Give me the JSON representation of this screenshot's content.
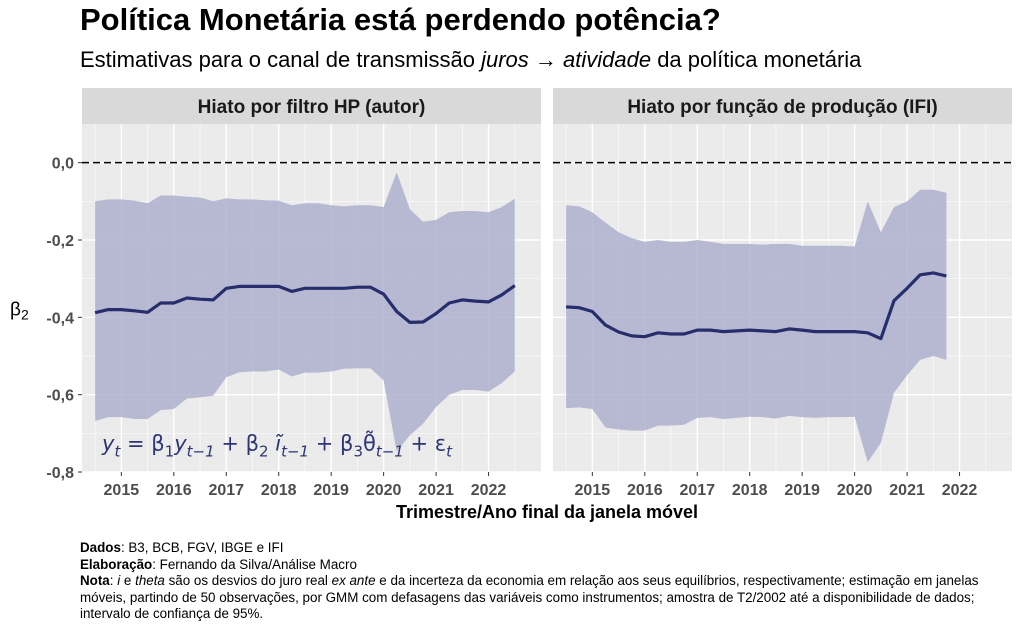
{
  "title": "Política Monetária está perdendo potência?",
  "subtitle": {
    "prefix": "Estimativas para o canal de transmissão ",
    "italic1": "juros",
    "arrow": " → ",
    "italic2": "atividade",
    "suffix": " da política monetária"
  },
  "colors": {
    "panel_bg": "#ebebeb",
    "strip_bg": "#d9d9d9",
    "grid": "#ffffff",
    "line": "#262e6c",
    "ribbon": "#aaaccd"
  },
  "chart_data": {
    "type": "line",
    "xlabel": "Trimestre/Ano final da janela móvel",
    "ylabel": "β2",
    "ylim": [
      -0.8,
      0.1
    ],
    "yticks": [
      0.0,
      -0.2,
      -0.4,
      -0.6,
      -0.8
    ],
    "ytick_labels": [
      "0,0",
      "-0,2",
      "-0,4",
      "-0,6",
      "-0,8"
    ],
    "xlim": [
      2014.25,
      2023.0
    ],
    "xticks": [
      2015,
      2016,
      2017,
      2018,
      2019,
      2020,
      2021,
      2022
    ],
    "xtick_labels": [
      "2015",
      "2016",
      "2017",
      "2018",
      "2019",
      "2020",
      "2021",
      "2022"
    ],
    "reference_line": 0.0,
    "equation": "y_t = β₁y_{t−1} + β₂ ĩ_{t−1} + β₃θ̃_{t−1} + ε_t",
    "panels": [
      {
        "strip": "Hiato por filtro HP (autor)",
        "x": [
          2014.5,
          2014.75,
          2015.0,
          2015.25,
          2015.5,
          2015.75,
          2016.0,
          2016.25,
          2016.5,
          2016.75,
          2017.0,
          2017.25,
          2017.5,
          2017.75,
          2018.0,
          2018.25,
          2018.5,
          2018.75,
          2019.0,
          2019.25,
          2019.5,
          2019.75,
          2020.0,
          2020.25,
          2020.5,
          2020.75,
          2021.0,
          2021.25,
          2021.5,
          2021.75,
          2022.0,
          2022.25,
          2022.5
        ],
        "estimate": [
          -0.388,
          -0.38,
          -0.38,
          -0.383,
          -0.387,
          -0.363,
          -0.363,
          -0.35,
          -0.353,
          -0.355,
          -0.325,
          -0.32,
          -0.32,
          -0.32,
          -0.32,
          -0.333,
          -0.325,
          -0.325,
          -0.325,
          -0.325,
          -0.322,
          -0.322,
          -0.34,
          -0.385,
          -0.413,
          -0.412,
          -0.39,
          -0.363,
          -0.355,
          -0.358,
          -0.36,
          -0.342,
          -0.318
        ],
        "upper": [
          -0.1,
          -0.095,
          -0.095,
          -0.098,
          -0.105,
          -0.085,
          -0.085,
          -0.088,
          -0.09,
          -0.1,
          -0.092,
          -0.095,
          -0.095,
          -0.097,
          -0.098,
          -0.11,
          -0.105,
          -0.105,
          -0.11,
          -0.113,
          -0.11,
          -0.11,
          -0.115,
          -0.025,
          -0.12,
          -0.153,
          -0.148,
          -0.128,
          -0.125,
          -0.125,
          -0.128,
          -0.115,
          -0.093
        ],
        "lower": [
          -0.668,
          -0.658,
          -0.658,
          -0.663,
          -0.663,
          -0.64,
          -0.637,
          -0.61,
          -0.607,
          -0.603,
          -0.555,
          -0.542,
          -0.54,
          -0.54,
          -0.535,
          -0.553,
          -0.543,
          -0.543,
          -0.54,
          -0.533,
          -0.532,
          -0.532,
          -0.563,
          -0.747,
          -0.705,
          -0.675,
          -0.632,
          -0.6,
          -0.588,
          -0.588,
          -0.592,
          -0.57,
          -0.54
        ]
      },
      {
        "strip": "Hiato por função de produção (IFI)",
        "x": [
          2014.5,
          2014.75,
          2015.0,
          2015.25,
          2015.5,
          2015.75,
          2016.0,
          2016.25,
          2016.5,
          2016.75,
          2017.0,
          2017.25,
          2017.5,
          2017.75,
          2018.0,
          2018.25,
          2018.5,
          2018.75,
          2019.0,
          2019.25,
          2019.5,
          2019.75,
          2020.0,
          2020.25,
          2020.5,
          2020.75,
          2021.0,
          2021.25,
          2021.5,
          2021.75
        ],
        "estimate": [
          -0.373,
          -0.375,
          -0.385,
          -0.42,
          -0.438,
          -0.448,
          -0.45,
          -0.44,
          -0.443,
          -0.443,
          -0.433,
          -0.433,
          -0.437,
          -0.435,
          -0.433,
          -0.435,
          -0.437,
          -0.43,
          -0.433,
          -0.437,
          -0.437,
          -0.437,
          -0.437,
          -0.44,
          -0.455,
          -0.357,
          -0.325,
          -0.29,
          -0.285,
          -0.293
        ],
        "upper": [
          -0.11,
          -0.113,
          -0.128,
          -0.155,
          -0.18,
          -0.195,
          -0.205,
          -0.2,
          -0.205,
          -0.205,
          -0.2,
          -0.205,
          -0.21,
          -0.21,
          -0.21,
          -0.212,
          -0.21,
          -0.21,
          -0.215,
          -0.215,
          -0.215,
          -0.215,
          -0.217,
          -0.1,
          -0.18,
          -0.115,
          -0.1,
          -0.07,
          -0.07,
          -0.078
        ],
        "lower": [
          -0.635,
          -0.633,
          -0.637,
          -0.685,
          -0.69,
          -0.693,
          -0.693,
          -0.68,
          -0.68,
          -0.678,
          -0.66,
          -0.658,
          -0.663,
          -0.66,
          -0.657,
          -0.658,
          -0.662,
          -0.655,
          -0.658,
          -0.66,
          -0.658,
          -0.658,
          -0.657,
          -0.775,
          -0.725,
          -0.595,
          -0.55,
          -0.51,
          -0.5,
          -0.51
        ]
      }
    ]
  },
  "captions": [
    {
      "bold": "Dados",
      "text": ": B3, BCB, FGV, IBGE e IFI"
    },
    {
      "bold": "Elaboração",
      "text": ": Fernando da Silva/Análise Macro"
    }
  ],
  "note": {
    "bold": "Nota",
    "p1": ": ",
    "i1": "i",
    "p2": " e ",
    "i2": "theta",
    "p3": " são os desvios do juro real ",
    "i3": "ex ante",
    "p4": " e da incerteza da economia em relação aos seus equilíbrios, respectivamente; estimação em janelas móveis, partindo de 50 observações, por GMM com defasagens das variáveis como instrumentos; amostra de T2/2002 até a disponibilidade de dados; intervalo de confiança de 95%."
  }
}
